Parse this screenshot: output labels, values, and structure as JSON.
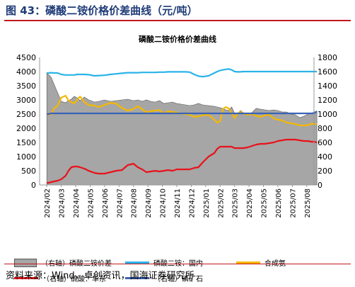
{
  "figure": {
    "title": "图 43：磷酸二铵价格价差曲线（元/吨）",
    "source": "资料来源：Wind，卓创资讯，国海证券研究所"
  },
  "chart_data": {
    "type": "line",
    "title": "磷酸二铵价格价差曲线",
    "categories": [
      "2024/02",
      "2024/03",
      "2024/04",
      "2024/05",
      "2024/06",
      "2024/07",
      "2024/08",
      "2024/09",
      "2024/10",
      "2024/11",
      "2024/12",
      "2025/01",
      "2025/02",
      "2025/03",
      "2025/04",
      "2025/05",
      "2025/06",
      "2025/07",
      "2025/08"
    ],
    "y_left": {
      "min": 0,
      "max": 4500,
      "step": 500,
      "ticks": [
        "0",
        "500",
        "1000",
        "1500",
        "2000",
        "2500",
        "3000",
        "3500",
        "4000",
        "4500"
      ]
    },
    "y_right": {
      "min": 0,
      "max": 1800,
      "step": 200,
      "ticks": [
        "0",
        "200",
        "400",
        "600",
        "800",
        "1000",
        "1200",
        "1400",
        "1600",
        "1800"
      ]
    },
    "grid": false,
    "legend_position": "bottom",
    "x": [
      0,
      0.1,
      0.3,
      0.5,
      0.75,
      1.0,
      1.3,
      1.5,
      1.7,
      1.9,
      2.1,
      2.3,
      2.6,
      2.9,
      3.3,
      3.6,
      4.0,
      4.4,
      4.8,
      5.2,
      5.6,
      6.0,
      6.3,
      6.6,
      6.9,
      7.2,
      7.5,
      7.8,
      8.1,
      8.4,
      8.7,
      9.0,
      9.3,
      9.6,
      9.9,
      10.2,
      10.5,
      10.8,
      11.2,
      11.6,
      11.8,
      12.0,
      12.2,
      12.4,
      12.6,
      12.8,
      13.0,
      13.2,
      13.4,
      13.6,
      13.9,
      14.2,
      14.5,
      14.8,
      15.1,
      15.4,
      15.7,
      16.0,
      16.3,
      16.6,
      16.9,
      17.2,
      17.5,
      17.8,
      18.1,
      18.3,
      18.5,
      18.7
    ],
    "series": [
      {
        "name": "（右轴）磷酸二铵价差",
        "axis": "right",
        "style": "area",
        "color": "#a6a6a6",
        "values": [
          1580,
          1560,
          1520,
          1420,
          1300,
          1180,
          1160,
          1190,
          1210,
          1250,
          1230,
          1190,
          1240,
          1200,
          1170,
          1180,
          1200,
          1180,
          1190,
          1200,
          1210,
          1190,
          1200,
          1180,
          1200,
          1180,
          1170,
          1190,
          1150,
          1160,
          1170,
          1150,
          1140,
          1130,
          1120,
          1130,
          1150,
          1130,
          1120,
          1110,
          1100,
          1090,
          1080,
          1060,
          1050,
          1100,
          1010,
          1000,
          1050,
          1020,
          1000,
          1020,
          1080,
          1070,
          1060,
          1050,
          1060,
          1050,
          1030,
          1030,
          1000,
          990,
          950,
          970,
          1000,
          1010,
          1030,
          1040
        ]
      },
      {
        "name": "磷酸二铵：国内",
        "axis": "left",
        "color": "#2ab3e8",
        "values": [
          3950,
          3950,
          3960,
          3950,
          3950,
          3900,
          3880,
          3880,
          3880,
          3880,
          3900,
          3900,
          3900,
          3890,
          3850,
          3860,
          3870,
          3900,
          3920,
          3940,
          3960,
          3960,
          3960,
          3970,
          3970,
          3970,
          3970,
          3980,
          3980,
          3990,
          3990,
          3990,
          3990,
          3990,
          3980,
          3900,
          3840,
          3820,
          3850,
          3950,
          4000,
          4040,
          4060,
          4080,
          4090,
          4060,
          4000,
          3990,
          3990,
          4000,
          4000,
          4000,
          4000,
          4000,
          4000,
          4000,
          4000,
          4000,
          4000,
          4000,
          4000,
          4000,
          4000,
          4000,
          4000,
          4000,
          4000,
          4000
        ]
      },
      {
        "name": "合成氨",
        "axis": "left",
        "color": "#f5b800",
        "values": [
          2500,
          2500,
          2480,
          2700,
          2800,
          3080,
          3150,
          2980,
          2920,
          2880,
          3000,
          3120,
          2920,
          2820,
          2800,
          2750,
          2820,
          2900,
          2870,
          2720,
          2620,
          2680,
          2780,
          2670,
          2570,
          2600,
          2630,
          2640,
          2520,
          2600,
          2580,
          2550,
          2520,
          2500,
          2480,
          2400,
          2420,
          2460,
          2480,
          2300,
          2200,
          2250,
          2680,
          2750,
          2700,
          2530,
          2360,
          2510,
          2580,
          2520,
          2480,
          2500,
          2440,
          2400,
          2460,
          2480,
          2350,
          2300,
          2280,
          2200,
          2180,
          2150,
          2100,
          2100,
          2110,
          2160,
          2150,
          2150
        ]
      },
      {
        "name": "（右轴）硫酸：华东",
        "axis": "right",
        "color": "#e8121a",
        "values": [
          30,
          30,
          40,
          50,
          60,
          80,
          130,
          200,
          250,
          260,
          260,
          250,
          230,
          200,
          170,
          160,
          160,
          180,
          200,
          210,
          280,
          300,
          250,
          220,
          180,
          190,
          200,
          190,
          200,
          210,
          200,
          220,
          220,
          220,
          220,
          240,
          250,
          320,
          400,
          450,
          510,
          540,
          540,
          540,
          540,
          540,
          520,
          520,
          520,
          520,
          530,
          550,
          570,
          580,
          580,
          590,
          600,
          620,
          630,
          640,
          640,
          640,
          630,
          620,
          620,
          610,
          610,
          600
        ]
      },
      {
        "name": "（右轴）磷矿石",
        "axis": "right",
        "color": "#3a63b8",
        "values": [
          1000,
          1000,
          1010,
          1010,
          1010,
          1010,
          1010,
          1010,
          1010,
          1010,
          1010,
          1010,
          1010,
          1010,
          1010,
          1010,
          1010,
          1010,
          1010,
          1010,
          1010,
          1010,
          1010,
          1010,
          1010,
          1010,
          1010,
          1010,
          1010,
          1010,
          1010,
          1010,
          1010,
          1010,
          1010,
          1010,
          1010,
          1010,
          1010,
          1010,
          1010,
          1010,
          1010,
          1010,
          1010,
          1010,
          1010,
          1010,
          1010,
          1010,
          1010,
          1010,
          1010,
          1010,
          1010,
          1010,
          1010,
          1010,
          1010,
          1010,
          1010,
          1010,
          1010,
          1010,
          1010,
          1010,
          1010,
          1040
        ]
      }
    ]
  }
}
